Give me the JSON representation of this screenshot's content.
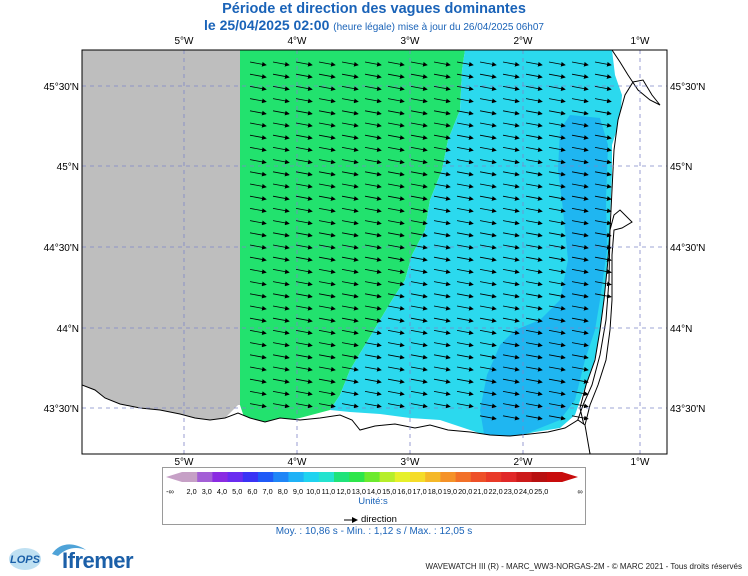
{
  "title": {
    "line1": "Période et direction des vagues dominantes",
    "date": "le 25/04/2025 02:00",
    "note": "(heure légale) mise à jour du 26/04/2025 06h07"
  },
  "map": {
    "lon_labels_top": [
      "5°W",
      "4°W",
      "3°W",
      "2°W",
      "1°W"
    ],
    "lon_labels_bottom": [
      "5°W",
      "4°W",
      "3°W",
      "2°W",
      "1°W"
    ],
    "lat_labels": [
      "45°30'N",
      "45°N",
      "44°30'N",
      "44°N",
      "43°30'N"
    ],
    "land_color": "#ffffff",
    "nodata_color": "#bebebe",
    "wave_direction": "toward east-southeast"
  },
  "colorbar": {
    "ticks": [
      "2,0",
      "3,0",
      "4,0",
      "5,0",
      "6,0",
      "7,0",
      "8,0",
      "9,0",
      "10,0",
      "11,0",
      "12,0",
      "13,0",
      "14,0",
      "15,0",
      "16,0",
      "17,0",
      "18,0",
      "19,0",
      "20,0",
      "21,0",
      "22,0",
      "23,0",
      "24,0",
      "25,0"
    ],
    "colors": [
      "#c6a0c6",
      "#a35fd6",
      "#8a2be2",
      "#6a2cf0",
      "#3a33f5",
      "#1f5af7",
      "#1f86f7",
      "#1fb2f7",
      "#1fd3f0",
      "#24e3cf",
      "#1fe37a",
      "#2de64a",
      "#6cea2e",
      "#b6ee2a",
      "#e6f02a",
      "#f5dc28",
      "#f5b828",
      "#f59228",
      "#f27028",
      "#ee5028",
      "#e93a28",
      "#e12828",
      "#cc1a1a",
      "#b81010",
      "#c80c0c"
    ],
    "underflow_label": "-∞",
    "overflow_label": "∞",
    "unit": "Unité:s",
    "direction_label": "direction"
  },
  "stats": {
    "text": "Moy. : 10,86 s   -   Min. : 1,12 s / Max. : 12,05 s"
  },
  "footer": {
    "credit": "WAVEWATCH III (R) - MARC_WW3-NORGAS-2M - © MARC 2021 - Tous droits réservés",
    "logo_left": "LOPS",
    "logo_right": "Ifremer"
  }
}
